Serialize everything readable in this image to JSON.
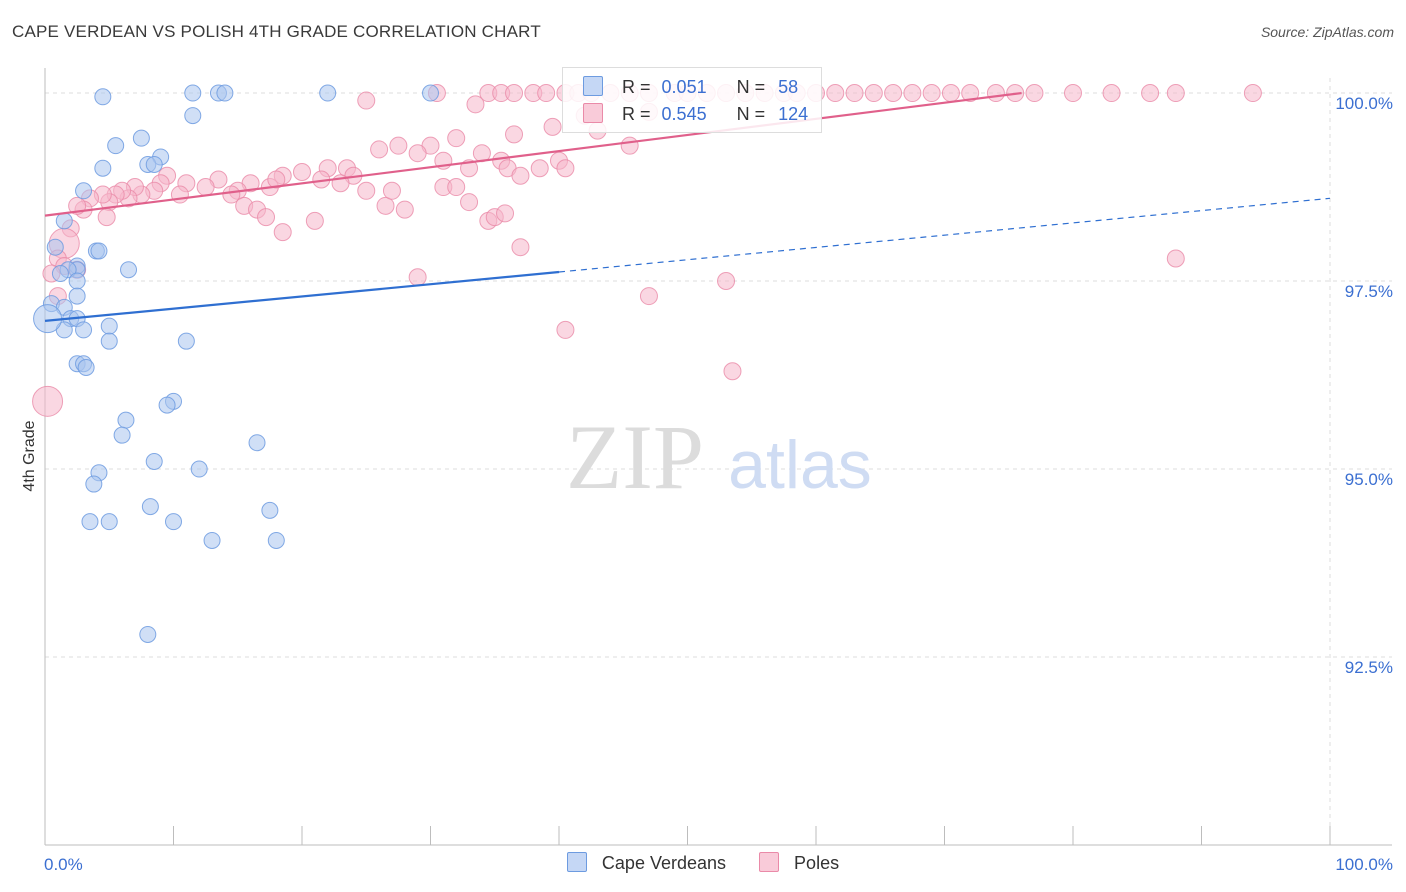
{
  "header": {
    "title": "CAPE VERDEAN VS POLISH 4TH GRADE CORRELATION CHART",
    "source": "Source: ZipAtlas.com"
  },
  "watermark": {
    "zip": "ZIP",
    "atlas": "atlas"
  },
  "legend": {
    "rows": [
      {
        "r_label": "R =",
        "r_value": "0.051",
        "n_label": "N =",
        "n_value": "58"
      },
      {
        "r_label": "R =",
        "r_value": "0.545",
        "n_label": "N =",
        "n_value": "124"
      }
    ]
  },
  "bottom_legend": {
    "series1": "Cape Verdeans",
    "series2": "Poles"
  },
  "colors": {
    "blue_fill": "#a9c4ef",
    "blue_stroke": "#6d9be0",
    "blue_line": "#2f6fd1",
    "pink_fill": "#f6b6ca",
    "pink_stroke": "#ea8aa8",
    "pink_line": "#e0608b",
    "tick_text": "#3b6fd1",
    "grid": "#dddddd"
  },
  "chart_data": {
    "type": "scatter",
    "title": "CAPE VERDEAN VS POLISH 4TH GRADE CORRELATION CHART",
    "xlabel": "",
    "ylabel": "4th Grade",
    "xlim": [
      0,
      100
    ],
    "ylim": [
      90.0,
      100.2
    ],
    "x_tick_labels": [
      "0.0%",
      "100.0%"
    ],
    "y_ticks": [
      {
        "value": 92.5,
        "label": "92.5%"
      },
      {
        "value": 95.0,
        "label": "95.0%"
      },
      {
        "value": 97.5,
        "label": "97.5%"
      },
      {
        "value": 100.0,
        "label": "100.0%"
      }
    ],
    "series": [
      {
        "name": "Cape Verdeans",
        "r": 0.051,
        "n": 58,
        "trend": {
          "x0": 0,
          "y0": 96.97,
          "x1": 40,
          "y1": 97.62,
          "x_dash_end": 100,
          "y_dash_end": 98.6
        },
        "points": [
          [
            4.5,
            99.95
          ],
          [
            11.5,
            100.0
          ],
          [
            13.5,
            100.0
          ],
          [
            14,
            100.0
          ],
          [
            22,
            100.0
          ],
          [
            30,
            100.0
          ],
          [
            11.5,
            99.7
          ],
          [
            5.5,
            99.3
          ],
          [
            7.5,
            99.4
          ],
          [
            9,
            99.15
          ],
          [
            4.5,
            99.0
          ],
          [
            8,
            99.05
          ],
          [
            8.5,
            99.05
          ],
          [
            3,
            98.7
          ],
          [
            1.5,
            98.3
          ],
          [
            0.8,
            97.95
          ],
          [
            4,
            97.9
          ],
          [
            4.2,
            97.9
          ],
          [
            2.5,
            97.7
          ],
          [
            2.5,
            97.65
          ],
          [
            1.8,
            97.65
          ],
          [
            1.2,
            97.6
          ],
          [
            6.5,
            97.65
          ],
          [
            2.5,
            97.5
          ],
          [
            2.5,
            97.3
          ],
          [
            0.5,
            97.2
          ],
          [
            1.5,
            97.15
          ],
          [
            2,
            97.0
          ],
          [
            2.5,
            97.0
          ],
          [
            1.5,
            96.85
          ],
          [
            5,
            96.9
          ],
          [
            3,
            96.85
          ],
          [
            5,
            96.7
          ],
          [
            11,
            96.7
          ],
          [
            2.5,
            96.4
          ],
          [
            3,
            96.4
          ],
          [
            3.2,
            96.35
          ],
          [
            10,
            95.9
          ],
          [
            9.5,
            95.85
          ],
          [
            6.3,
            95.65
          ],
          [
            6,
            95.45
          ],
          [
            16.5,
            95.35
          ],
          [
            8.5,
            95.1
          ],
          [
            12,
            95.0
          ],
          [
            4.2,
            94.95
          ],
          [
            3.8,
            94.8
          ],
          [
            8.2,
            94.5
          ],
          [
            17.5,
            94.45
          ],
          [
            3.5,
            94.3
          ],
          [
            5,
            94.3
          ],
          [
            10,
            94.3
          ],
          [
            13,
            94.05
          ],
          [
            18,
            94.05
          ],
          [
            8,
            92.8
          ],
          [
            0.2,
            97.0
          ]
        ]
      },
      {
        "name": "Poles",
        "r": 0.545,
        "n": 124,
        "trend": {
          "x0": 0,
          "y0": 98.37,
          "x1": 76,
          "y1": 100.0
        },
        "points": [
          [
            30.5,
            100.0
          ],
          [
            34.5,
            100.0
          ],
          [
            35.5,
            100.0
          ],
          [
            36.5,
            100.0
          ],
          [
            38,
            100.0
          ],
          [
            39,
            100.0
          ],
          [
            40.5,
            100.0
          ],
          [
            41.5,
            100.0
          ],
          [
            42.5,
            100.0
          ],
          [
            44,
            100.0
          ],
          [
            45.5,
            100.0
          ],
          [
            47,
            100.0
          ],
          [
            49,
            100.0
          ],
          [
            50,
            100.0
          ],
          [
            51.5,
            100.0
          ],
          [
            53,
            100.0
          ],
          [
            54.5,
            100.0
          ],
          [
            56,
            100.0
          ],
          [
            57.5,
            100.0
          ],
          [
            58.5,
            100.0
          ],
          [
            60,
            100.0
          ],
          [
            61.5,
            100.0
          ],
          [
            63,
            100.0
          ],
          [
            64.5,
            100.0
          ],
          [
            66,
            100.0
          ],
          [
            67.5,
            100.0
          ],
          [
            69,
            100.0
          ],
          [
            70.5,
            100.0
          ],
          [
            72,
            100.0
          ],
          [
            74,
            100.0
          ],
          [
            75.5,
            100.0
          ],
          [
            77,
            100.0
          ],
          [
            80,
            100.0
          ],
          [
            83,
            100.0
          ],
          [
            86,
            100.0
          ],
          [
            88,
            100.0
          ],
          [
            94,
            100.0
          ],
          [
            33.5,
            99.85
          ],
          [
            25,
            99.9
          ],
          [
            42,
            99.7
          ],
          [
            47,
            99.75
          ],
          [
            39.5,
            99.55
          ],
          [
            36.5,
            99.45
          ],
          [
            32,
            99.4
          ],
          [
            30,
            99.3
          ],
          [
            43,
            99.5
          ],
          [
            26,
            99.25
          ],
          [
            27.5,
            99.3
          ],
          [
            29,
            99.2
          ],
          [
            31,
            99.1
          ],
          [
            33,
            99.0
          ],
          [
            34,
            99.2
          ],
          [
            35.5,
            99.1
          ],
          [
            36,
            99.0
          ],
          [
            37,
            98.9
          ],
          [
            38.5,
            99.0
          ],
          [
            40,
            99.1
          ],
          [
            45.5,
            99.3
          ],
          [
            40.5,
            99.0
          ],
          [
            22,
            99.0
          ],
          [
            23.5,
            99.0
          ],
          [
            24,
            98.9
          ],
          [
            21.5,
            98.85
          ],
          [
            20,
            98.95
          ],
          [
            18.5,
            98.9
          ],
          [
            17.5,
            98.75
          ],
          [
            18,
            98.85
          ],
          [
            16,
            98.8
          ],
          [
            15,
            98.7
          ],
          [
            14.5,
            98.65
          ],
          [
            13.5,
            98.85
          ],
          [
            12.5,
            98.75
          ],
          [
            11,
            98.8
          ],
          [
            10.5,
            98.65
          ],
          [
            9.5,
            98.9
          ],
          [
            9,
            98.8
          ],
          [
            8.5,
            98.7
          ],
          [
            7.5,
            98.65
          ],
          [
            7,
            98.75
          ],
          [
            6.5,
            98.6
          ],
          [
            6,
            98.7
          ],
          [
            5.5,
            98.65
          ],
          [
            5,
            98.55
          ],
          [
            4.5,
            98.65
          ],
          [
            3.5,
            98.6
          ],
          [
            3,
            98.45
          ],
          [
            2.5,
            98.5
          ],
          [
            2,
            98.2
          ],
          [
            1.5,
            98.0
          ],
          [
            1,
            97.8
          ],
          [
            1.5,
            97.7
          ],
          [
            2.5,
            97.65
          ],
          [
            0.5,
            97.6
          ],
          [
            1,
            97.3
          ],
          [
            0.2,
            95.9
          ],
          [
            4.8,
            98.35
          ],
          [
            15.5,
            98.5
          ],
          [
            16.5,
            98.45
          ],
          [
            17.2,
            98.35
          ],
          [
            18.5,
            98.15
          ],
          [
            21,
            98.3
          ],
          [
            23,
            98.8
          ],
          [
            25,
            98.7
          ],
          [
            26.5,
            98.5
          ],
          [
            28,
            98.45
          ],
          [
            27,
            98.7
          ],
          [
            31,
            98.75
          ],
          [
            32,
            98.75
          ],
          [
            33,
            98.55
          ],
          [
            34.5,
            98.3
          ],
          [
            35,
            98.35
          ],
          [
            35.8,
            98.4
          ],
          [
            37,
            97.95
          ],
          [
            29,
            97.55
          ],
          [
            40.5,
            96.85
          ],
          [
            47,
            97.3
          ],
          [
            53,
            97.5
          ],
          [
            53.5,
            96.3
          ],
          [
            88,
            97.8
          ]
        ]
      }
    ]
  }
}
